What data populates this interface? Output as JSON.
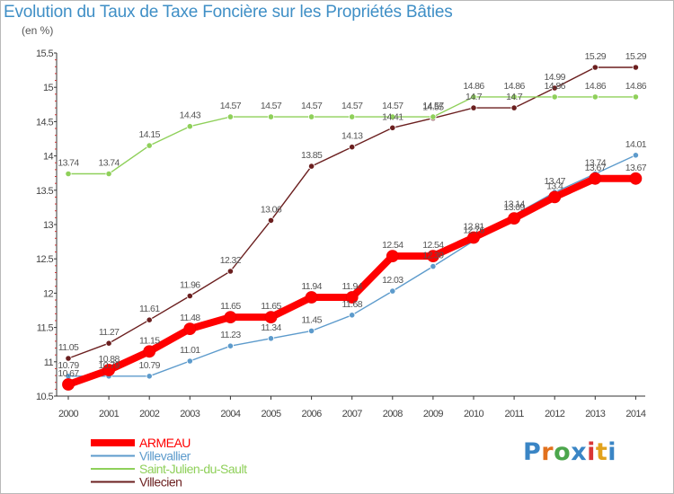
{
  "title": "Evolution du Taux de Taxe Foncière sur les Propriétés Bâties",
  "unit_label": "(en %)",
  "logo": {
    "text": "Proxiti",
    "letters": [
      "P",
      "r",
      "o",
      "x",
      "i",
      "t",
      "i"
    ],
    "colors": [
      "#3a85c5",
      "#e2711d",
      "#4ca64c",
      "#3a85c5",
      "#d93636",
      "#e2a21d",
      "#3a85c5"
    ]
  },
  "chart_data": {
    "type": "line",
    "title": "Evolution du Taux de Taxe Foncière sur les Propriétés Bâties",
    "ylabel": "(en %)",
    "xlabel": "",
    "x": [
      "2000",
      "2001",
      "2002",
      "2003",
      "2004",
      "2005",
      "2006",
      "2007",
      "2008",
      "2009",
      "2010",
      "2011",
      "2012",
      "2013",
      "2014"
    ],
    "ylim": [
      10.5,
      15.5
    ],
    "yticks": [
      "10.5",
      "11",
      "11.5",
      "12",
      "12.5",
      "13",
      "13.5",
      "14",
      "14.5",
      "15",
      "15.5"
    ],
    "grid": false,
    "legend_position": "bottom-left",
    "series": [
      {
        "name": "Villecien",
        "color": "#6b1f1f",
        "values": [
          11.05,
          11.27,
          11.61,
          11.96,
          12.32,
          13.06,
          13.85,
          14.13,
          14.41,
          14.55,
          14.7,
          14.7,
          14.99,
          15.29,
          15.29
        ],
        "labels": [
          "11.05",
          "11.27",
          "11.61",
          "11.96",
          "12.32",
          "13.06",
          "13.85",
          "14.13",
          "14.41",
          "14.55",
          "14.7",
          "14.7",
          "14.99",
          "15.29",
          "15.29"
        ]
      },
      {
        "name": "Saint-Julien-du-Sault",
        "color": "#8fd05a",
        "values": [
          13.74,
          13.74,
          14.15,
          14.43,
          14.57,
          14.57,
          14.57,
          14.57,
          14.57,
          14.57,
          14.86,
          14.86,
          14.86,
          14.86,
          14.86
        ],
        "labels": [
          "13.74",
          "13.74",
          "14.15",
          "14.43",
          "14.57",
          "14.57",
          "14.57",
          "14.57",
          "14.57",
          "14.57",
          "14.86",
          "14.86",
          "14.86",
          "14.86",
          "14.86"
        ]
      },
      {
        "name": "Villevallier",
        "color": "#5d9bcc",
        "values": [
          10.79,
          10.79,
          10.79,
          11.01,
          11.23,
          11.34,
          11.45,
          11.68,
          12.03,
          12.39,
          12.76,
          13.14,
          13.47,
          13.74,
          14.01
        ],
        "labels": [
          "10.79",
          "10.79",
          "10.79",
          "11.01",
          "11.23",
          "11.34",
          "11.45",
          "11.68",
          "12.03",
          "12.39",
          "12.76",
          "13.14",
          "13.47",
          "13.74",
          "14.01"
        ]
      },
      {
        "name": "ARMEAU",
        "color": "#ff0000",
        "values": [
          10.67,
          10.88,
          11.15,
          11.48,
          11.65,
          11.65,
          11.94,
          11.94,
          12.54,
          12.54,
          12.81,
          13.09,
          13.4,
          13.67,
          13.67
        ],
        "labels": [
          "10.67",
          "10.88",
          "11.15",
          "11.48",
          "11.65",
          "11.65",
          "11.94",
          "11.94",
          "12.54",
          "12.54",
          "12.81",
          "13.09",
          "13.4",
          "13.67",
          "13.67"
        ]
      }
    ],
    "legend": [
      "ARMEAU",
      "Villevallier",
      "Saint-Julien-du-Sault",
      "Villecien"
    ]
  }
}
